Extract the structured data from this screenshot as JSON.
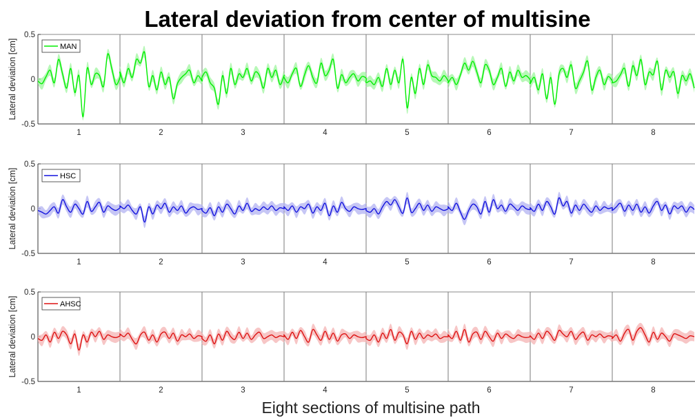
{
  "figure": {
    "title": "Lateral deviation from center of multisine",
    "xlabel": "Eight sections of multisine path"
  },
  "chart_data": [
    {
      "type": "line",
      "title": "",
      "xlabel": "",
      "ylabel": "Lateral deviation [cm]",
      "categories": [
        "1",
        "2",
        "3",
        "4",
        "5",
        "6",
        "7",
        "8"
      ],
      "ylim": [
        -0.5,
        0.5
      ],
      "yticks": [
        "0.5",
        "0",
        "-0.5"
      ],
      "legend": "top-left",
      "series": [
        {
          "name": "MAN",
          "color": "#00ee00",
          "band_color": "#9ff59f",
          "values": [
            [
              -0.02,
              -0.05,
              0.03,
              0.1,
              -0.04,
              0.22,
              0.06,
              -0.1,
              0.12,
              -0.15,
              0.04,
              -0.42,
              0.12,
              -0.06,
              0.06,
              0.04,
              -0.08,
              0.28,
              0.12,
              -0.06,
              0.02
            ],
            [
              0.08,
              -0.04,
              0.12,
              0.02,
              0.22,
              0.18,
              0.3,
              -0.08,
              0.04,
              -0.12,
              0.08,
              -0.06,
              0.02,
              -0.22,
              -0.05,
              0.02,
              0.06,
              0.1,
              -0.04,
              0.04,
              -0.02
            ],
            [
              0.02,
              0.08,
              -0.04,
              -0.1,
              -0.28,
              0.04,
              -0.16,
              0.12,
              -0.06,
              0.06,
              0.02,
              0.12,
              -0.02,
              0.08,
              0.04,
              -0.1,
              0.12,
              0.02,
              0.1,
              -0.06,
              0.04
            ],
            [
              0.02,
              -0.04,
              0.06,
              0.12,
              -0.08,
              0.05,
              0.15,
              0.02,
              -0.04,
              0.18,
              0.04,
              0.1,
              0.22,
              -0.1,
              0.05,
              -0.04,
              0.02,
              0.06,
              -0.02,
              0.03,
              0.01
            ],
            [
              -0.04,
              -0.02,
              -0.06,
              0.02,
              -0.08,
              0.12,
              -0.06,
              0.1,
              -0.04,
              0.22,
              -0.32,
              0.02,
              -0.16,
              0.12,
              -0.06,
              0.16,
              0.04,
              0.02,
              -0.02,
              0.04,
              -0.02
            ],
            [
              -0.04,
              0.02,
              -0.06,
              0.05,
              0.18,
              0.1,
              0.2,
              0.08,
              -0.04,
              0.16,
              0.1,
              -0.06,
              0.02,
              0.12,
              -0.08,
              0.08,
              -0.02,
              0.1,
              0.02,
              0.04,
              -0.01
            ],
            [
              -0.05,
              0.02,
              -0.12,
              0.06,
              -0.22,
              0.02,
              -0.28,
              0.05,
              0.12,
              0.02,
              0.16,
              -0.1,
              -0.02,
              0.08,
              0.2,
              -0.12,
              0.02,
              0.1,
              -0.06,
              0.03,
              -0.02
            ],
            [
              -0.04,
              -0.02,
              0.05,
              0.12,
              -0.08,
              0.15,
              0.04,
              0.22,
              -0.06,
              0.08,
              0.05,
              0.2,
              -0.12,
              0.1,
              0.02,
              0.08,
              -0.16,
              0.04,
              -0.02,
              0.06,
              -0.1
            ]
          ]
        }
      ]
    },
    {
      "type": "line",
      "title": "",
      "xlabel": "",
      "ylabel": "Lateral deviation [cm]",
      "categories": [
        "1",
        "2",
        "3",
        "4",
        "5",
        "6",
        "7",
        "8"
      ],
      "ylim": [
        -0.5,
        0.5
      ],
      "yticks": [
        "0.5",
        "0",
        "-0.5"
      ],
      "legend": "top-left",
      "series": [
        {
          "name": "HSC",
          "color": "#1111dd",
          "band_color": "#b3b3f2",
          "values": [
            [
              -0.02,
              -0.04,
              -0.06,
              -0.02,
              0.02,
              -0.05,
              0.1,
              0.02,
              -0.04,
              0.05,
              0.0,
              -0.06,
              0.08,
              -0.03,
              0.02,
              0.07,
              -0.04,
              0.03,
              0.0,
              -0.02,
              0.01
            ],
            [
              0.03,
              0.0,
              0.04,
              -0.02,
              -0.06,
              0.02,
              -0.15,
              0.02,
              -0.06,
              0.04,
              0.0,
              0.06,
              -0.04,
              0.02,
              -0.02,
              0.03,
              -0.05,
              0.0,
              0.02,
              -0.01,
              0.0
            ],
            [
              -0.02,
              -0.05,
              0.01,
              -0.08,
              0.02,
              -0.04,
              0.05,
              0.0,
              -0.06,
              0.03,
              -0.02,
              0.06,
              -0.03,
              0.0,
              -0.02,
              0.02,
              -0.01,
              0.03,
              -0.02,
              0.01,
              0.0
            ],
            [
              0.02,
              -0.02,
              0.03,
              -0.04,
              0.02,
              0.0,
              0.05,
              -0.05,
              0.02,
              -0.02,
              0.06,
              -0.08,
              0.03,
              -0.04,
              0.07,
              0.0,
              -0.03,
              0.02,
              0.0,
              -0.01,
              0.0
            ],
            [
              -0.02,
              -0.04,
              0.0,
              -0.06,
              0.02,
              0.08,
              0.04,
              0.1,
              0.02,
              -0.05,
              0.12,
              -0.04,
              0.0,
              0.06,
              -0.02,
              0.04,
              -0.03,
              0.02,
              0.0,
              -0.02,
              0.0
            ],
            [
              0.02,
              -0.02,
              0.06,
              -0.04,
              -0.12,
              -0.02,
              0.05,
              0.02,
              -0.06,
              0.08,
              -0.04,
              0.1,
              0.0,
              0.04,
              -0.03,
              0.05,
              0.02,
              -0.02,
              0.03,
              0.0,
              -0.01
            ],
            [
              0.01,
              -0.03,
              0.05,
              -0.02,
              0.08,
              0.02,
              -0.06,
              0.12,
              0.03,
              0.08,
              -0.05,
              0.04,
              -0.02,
              0.05,
              0.0,
              -0.04,
              0.03,
              -0.02,
              0.02,
              0.0,
              0.01
            ],
            [
              -0.02,
              0.02,
              0.06,
              -0.03,
              0.04,
              -0.02,
              0.05,
              -0.04,
              0.02,
              -0.05,
              0.03,
              0.08,
              -0.02,
              0.04,
              -0.06,
              0.03,
              0.0,
              0.03,
              -0.04,
              0.02,
              -0.01
            ]
          ]
        }
      ]
    },
    {
      "type": "line",
      "title": "",
      "xlabel": "",
      "ylabel": "Lateral deviation [cm]",
      "categories": [
        "1",
        "2",
        "3",
        "4",
        "5",
        "6",
        "7",
        "8"
      ],
      "ylim": [
        -0.5,
        0.5
      ],
      "yticks": [
        "0.5",
        "0",
        "-0.5"
      ],
      "legend": "top-left",
      "series": [
        {
          "name": "AHSC",
          "color": "#dd1111",
          "band_color": "#f4b3b3",
          "values": [
            [
              -0.02,
              -0.04,
              0.02,
              -0.06,
              0.05,
              -0.02,
              0.06,
              0.02,
              -0.08,
              0.03,
              -0.15,
              0.02,
              -0.06,
              0.05,
              0.0,
              0.06,
              -0.03,
              0.02,
              0.0,
              -0.01,
              0.01
            ],
            [
              0.03,
              0.0,
              0.04,
              -0.03,
              -0.08,
              0.02,
              0.05,
              -0.04,
              0.02,
              -0.06,
              0.03,
              0.05,
              -0.02,
              0.04,
              -0.05,
              0.02,
              0.0,
              0.03,
              -0.02,
              0.01,
              0.0
            ],
            [
              -0.02,
              -0.05,
              0.02,
              -0.08,
              0.03,
              -0.04,
              0.06,
              0.0,
              -0.03,
              0.05,
              -0.02,
              0.04,
              -0.03,
              0.02,
              0.05,
              -0.02,
              0.0,
              0.02,
              -0.01,
              0.01,
              0.0
            ],
            [
              0.02,
              -0.03,
              0.05,
              -0.02,
              0.07,
              0.0,
              -0.06,
              0.08,
              0.02,
              -0.04,
              0.06,
              -0.03,
              0.04,
              -0.05,
              0.02,
              0.03,
              -0.02,
              0.02,
              0.0,
              -0.01,
              0.0
            ],
            [
              -0.02,
              -0.04,
              0.02,
              -0.06,
              0.04,
              -0.02,
              0.08,
              -0.04,
              0.05,
              0.02,
              -0.08,
              0.06,
              -0.03,
              0.04,
              -0.02,
              0.02,
              0.0,
              0.03,
              -0.02,
              0.0,
              0.0
            ],
            [
              0.02,
              -0.02,
              0.06,
              -0.04,
              0.08,
              -0.06,
              0.03,
              0.05,
              -0.03,
              0.06,
              0.0,
              -0.05,
              0.04,
              -0.02,
              0.03,
              0.0,
              -0.02,
              0.02,
              0.0,
              -0.01,
              0.0
            ],
            [
              0.01,
              -0.03,
              0.04,
              -0.02,
              0.06,
              0.02,
              -0.04,
              0.07,
              0.03,
              0.0,
              0.06,
              -0.03,
              0.02,
              0.05,
              -0.04,
              0.02,
              0.0,
              0.03,
              -0.01,
              0.01,
              0.0
            ],
            [
              -0.02,
              0.02,
              -0.05,
              0.04,
              0.08,
              -0.04,
              0.06,
              0.1,
              0.02,
              -0.06,
              0.05,
              -0.03,
              0.04,
              0.0,
              -0.05,
              0.03,
              0.02,
              0.0,
              -0.02,
              0.01,
              0.0
            ]
          ]
        }
      ]
    }
  ]
}
